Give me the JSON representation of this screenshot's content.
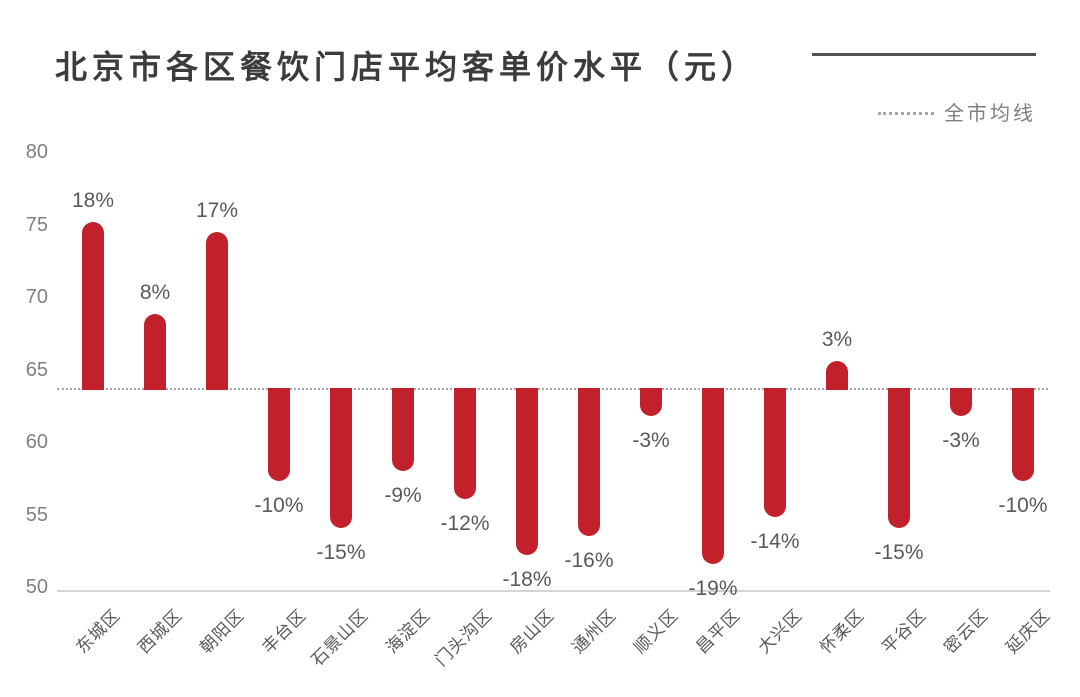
{
  "header": {
    "title": "北京市各区餐饮门店平均客单价水平（元）"
  },
  "legend": {
    "label": "全市均线"
  },
  "colors": {
    "bar": "#c2202a",
    "title_text": "#3c3c3c",
    "y_axis_text": "#808080",
    "value_label_text": "#595959",
    "x_axis_text": "#595959",
    "average_line": "#a6a6a6",
    "axis_line": "#d4d4d4",
    "accent_line": "#515151",
    "background": "#ffffff"
  },
  "chart_data": {
    "type": "bar",
    "title": "北京市各区餐饮门店平均客单价水平（元）",
    "categories": [
      "东城区",
      "西城区",
      "朝阳区",
      "丰台区",
      "石景山区",
      "海淀区",
      "门头沟区",
      "房山区",
      "通州区",
      "顺义区",
      "昌平区",
      "大兴区",
      "怀柔区",
      "平谷区",
      "密云区",
      "延庆区"
    ],
    "values_pct_vs_city_average": [
      18,
      8,
      17,
      -10,
      -15,
      -9,
      -12,
      -18,
      -16,
      -3,
      -19,
      -14,
      3,
      -15,
      -3,
      -10
    ],
    "point_labels": [
      "18%",
      "8%",
      "17%",
      "-10%",
      "-15%",
      "-9%",
      "-12%",
      "-18%",
      "-16%",
      "-3%",
      "-19%",
      "-14%",
      "3%",
      "-15%",
      "-3%",
      "-10%"
    ],
    "estimated_values_yuan": [
      75.2,
      68.8,
      74.5,
      57.3,
      54.1,
      58.0,
      56.1,
      52.2,
      53.5,
      61.8,
      51.6,
      54.8,
      65.6,
      54.1,
      61.8,
      57.3
    ],
    "baseline_value": 63.7,
    "baseline_label": "全市均线",
    "xlabel": "",
    "ylabel": "",
    "ylim": [
      50,
      80
    ],
    "yticks": [
      50,
      55,
      60,
      65,
      70,
      75,
      80
    ],
    "grid": false,
    "legend_position": "top-right"
  }
}
